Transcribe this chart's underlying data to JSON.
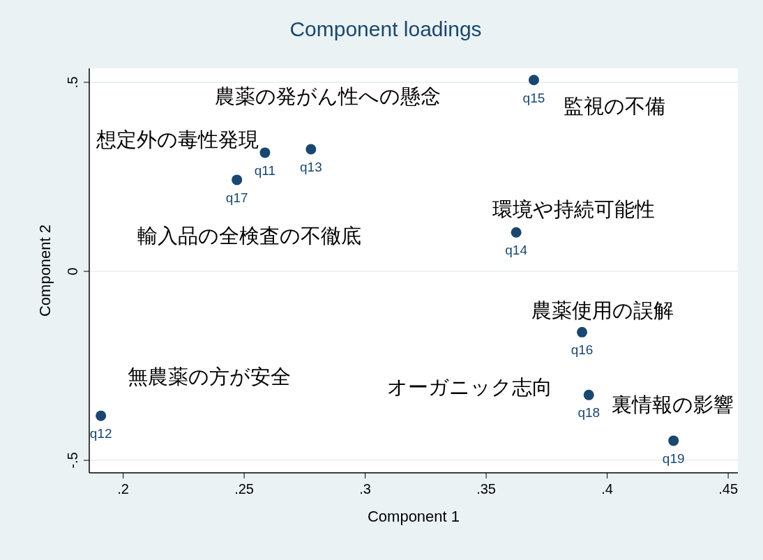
{
  "chart_data": {
    "type": "scatter",
    "title": "Component loadings",
    "xlabel": "Component 1",
    "ylabel": "Component 2",
    "x": [
      0.2586,
      0.1908,
      0.2776,
      0.3624,
      0.3697,
      0.3896,
      0.247,
      0.3924,
      0.4274
    ],
    "series": [
      {
        "color": "#1a476f",
        "values": [
          0.314,
          -0.382,
          0.323,
          0.103,
          0.506,
          -0.161,
          0.242,
          -0.327,
          -0.448
        ],
        "value_labels": [
          "q11",
          "q12",
          "q13",
          "q14",
          "q15",
          "q16",
          "q17",
          "q18",
          "q19"
        ]
      }
    ],
    "xlim": [
      0.186,
      0.454
    ],
    "ylim": [
      -0.533,
      0.537
    ],
    "xticks": [
      {
        "value": 0.2,
        "label": ".2"
      },
      {
        "value": 0.25,
        "label": ".25"
      },
      {
        "value": 0.3,
        "label": ".3"
      },
      {
        "value": 0.35,
        "label": ".35"
      },
      {
        "value": 0.4,
        "label": ".4"
      },
      {
        "value": 0.45,
        "label": ".45"
      }
    ],
    "yticks": [
      {
        "value": -0.5,
        "label": "-.5"
      },
      {
        "value": 0,
        "label": "0"
      },
      {
        "value": 0.5,
        "label": ".5"
      }
    ],
    "grid": "y",
    "marker": "circle",
    "annotations": [
      "農薬の発がん性への懸念",
      "監視の不備",
      "想定外の毒性発現",
      "環境や持続可能性",
      "輸入品の全検査の不徹底",
      "農薬使用の誤解",
      "無農薬の方が安全",
      "オーガニック志向",
      "裏情報の影響"
    ]
  }
}
